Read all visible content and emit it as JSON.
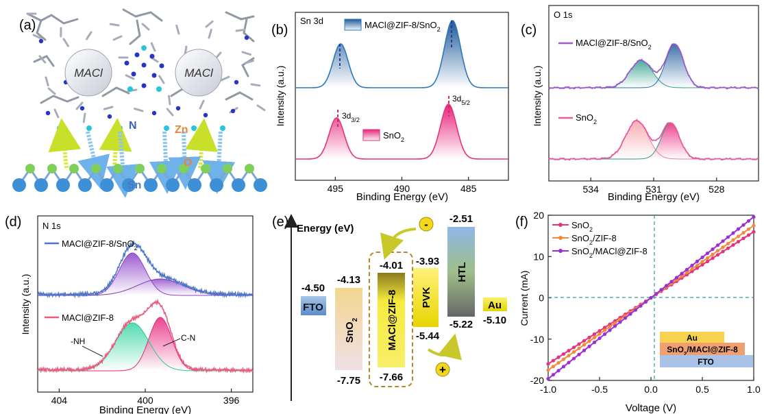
{
  "panels": {
    "a": {
      "label": "(a)",
      "molecules": [
        "MACl",
        "MACl"
      ],
      "atom_labels": {
        "n": "N",
        "zn": "Zn",
        "o": "O",
        "sn": "Sn"
      },
      "colors": {
        "substrate_sn": "#3d8fd6",
        "substrate_o": "#7fcf5a",
        "zn": "#26c6da",
        "n": "#2635c9",
        "arrow_yellow": "#d7ea3a",
        "arrow_blue": "#8ec5ef",
        "label_zn": "#ee8433",
        "label_sn": "#4e78c7"
      }
    },
    "b": {
      "label": "(b)",
      "title": "Sn 3d",
      "xlabel": "Binding Energy (eV)",
      "ylabel": "Intensity (a.u.)",
      "peak_labels": {
        "d32": "3d",
        "d32_sub": "3/2",
        "d52": "3d",
        "d52_sub": "5/2"
      }
    },
    "c": {
      "label": "(c)",
      "title": "O 1s",
      "xlabel": "Binding Energy (eV)",
      "ylabel": "Intensity (a.u.)"
    },
    "d": {
      "label": "(d)",
      "title": "N 1s",
      "xlabel": "Binding Energy (eV)",
      "ylabel": "Intensity (a.u.)",
      "annotations": {
        "nh": "-NH",
        "cn": "C-N"
      }
    },
    "e": {
      "label": "(e)",
      "axis_label": "Energy (eV)",
      "electron_symbol": "-",
      "hole_symbol": "+",
      "levels": [
        {
          "name": "FTO",
          "top": "-4.50",
          "bottom": "",
          "color": "#7ba7d9"
        },
        {
          "name": "SnO",
          "sub": "2",
          "top": "-4.13",
          "bottom": "-7.75",
          "color": "#f3dcb2"
        },
        {
          "name": "MACl@ZIF-8",
          "top": "-4.01",
          "bottom": "-7.66",
          "color": "#f3e33a"
        },
        {
          "name": "PVK",
          "top": "-3.93",
          "bottom": "-5.44",
          "color": "#f4ea3a"
        },
        {
          "name": "HTL",
          "top": "-2.51",
          "bottom": "-5.22",
          "color": "#8fb0d8"
        },
        {
          "name": "Au",
          "top": "",
          "bottom": "-5.10",
          "color": "#f2e33a"
        }
      ]
    },
    "f": {
      "label": "(f)",
      "xlabel": "Voltage (V)",
      "ylabel": "Current (mA)",
      "device_layers": {
        "au": "Au",
        "mid": "SnO",
        "mid_sub": "2",
        "mid_rest": "/MACl@ZIF-8",
        "fto": "FTO"
      }
    }
  },
  "chart_data": [
    {
      "panel": "b",
      "type": "line",
      "title": "Sn 3d",
      "xlabel": "Binding Energy (eV)",
      "ylabel": "Intensity (a.u.)",
      "xlim": [
        498,
        482
      ],
      "xticks": [
        495,
        490,
        485
      ],
      "series": [
        {
          "name": "MACl@ZIF-8/SnO2",
          "color": "#2a78b8",
          "peaks": [
            494.6,
            486.2
          ]
        },
        {
          "name": "SnO2",
          "color": "#e6327a",
          "peaks": [
            494.9,
            486.5
          ]
        }
      ],
      "legend": [
        {
          "name": "MACl@ZIF-8/SnO",
          "sub": "2"
        },
        {
          "name": "SnO",
          "sub": "2"
        }
      ]
    },
    {
      "panel": "c",
      "type": "line",
      "title": "O 1s",
      "xlabel": "Binding Energy (eV)",
      "ylabel": "Intensity (a.u.)",
      "xlim": [
        536,
        526
      ],
      "xticks": [
        534,
        531,
        528
      ],
      "series": [
        {
          "name": "MACl@ZIF-8/SnO2",
          "color": "#9b5bc9",
          "peaks": [
            531.6,
            530.0
          ]
        },
        {
          "name": "SnO2",
          "color": "#ea5aa0",
          "peaks": [
            531.8,
            530.2
          ]
        }
      ],
      "legend": [
        {
          "name": "MACl@ZIF-8/SnO",
          "sub": "2"
        },
        {
          "name": "SnO",
          "sub": "2"
        }
      ]
    },
    {
      "panel": "d",
      "type": "line",
      "title": "N 1s",
      "xlabel": "Binding Energy (eV)",
      "ylabel": "Intensity (a.u.)",
      "xlim": [
        405,
        395
      ],
      "xticks": [
        404,
        400,
        396
      ],
      "series": [
        {
          "name": "MACl@ZIF-8/SnO2",
          "color": "#4a75c9",
          "peaks": [
            400.6,
            399.3
          ]
        },
        {
          "name": "MACl@ZIF-8",
          "color": "#e95a7c",
          "peaks": [
            399.3,
            400.6
          ]
        }
      ],
      "legend": [
        {
          "name": "MACl@ZIF-8/SnO",
          "sub": "2"
        },
        {
          "name": "MACl@ZIF-8",
          "sub": ""
        }
      ]
    },
    {
      "panel": "f",
      "type": "line",
      "xlabel": "Voltage (V)",
      "ylabel": "Current (mA)",
      "xlim": [
        -1.0,
        1.0
      ],
      "ylim": [
        -20,
        20
      ],
      "xticks": [
        "-1.0",
        "-0.5",
        "0.0",
        "0.5",
        "1.0"
      ],
      "yticks": [
        "20",
        "10",
        "0",
        "-10",
        "-20"
      ],
      "series": [
        {
          "name": "SnO2",
          "color": "#e6327a",
          "x": [
            -1.0,
            1.0
          ],
          "y": [
            -16.0,
            16.0
          ]
        },
        {
          "name": "SnO2/ZIF-8",
          "color": "#f08a3c",
          "x": [
            -1.0,
            1.0
          ],
          "y": [
            -17.5,
            17.5
          ]
        },
        {
          "name": "SnO2/MACl@ZIF-8",
          "color": "#9a2fd6",
          "x": [
            -1.0,
            1.0
          ],
          "y": [
            -19.6,
            19.6
          ]
        }
      ],
      "legend": [
        {
          "name": "SnO",
          "sub": "2",
          "rest": ""
        },
        {
          "name": "SnO",
          "sub": "2",
          "rest": "/ZIF-8"
        },
        {
          "name": "SnO",
          "sub": "2",
          "rest": "/MACl@ZIF-8"
        }
      ]
    }
  ]
}
